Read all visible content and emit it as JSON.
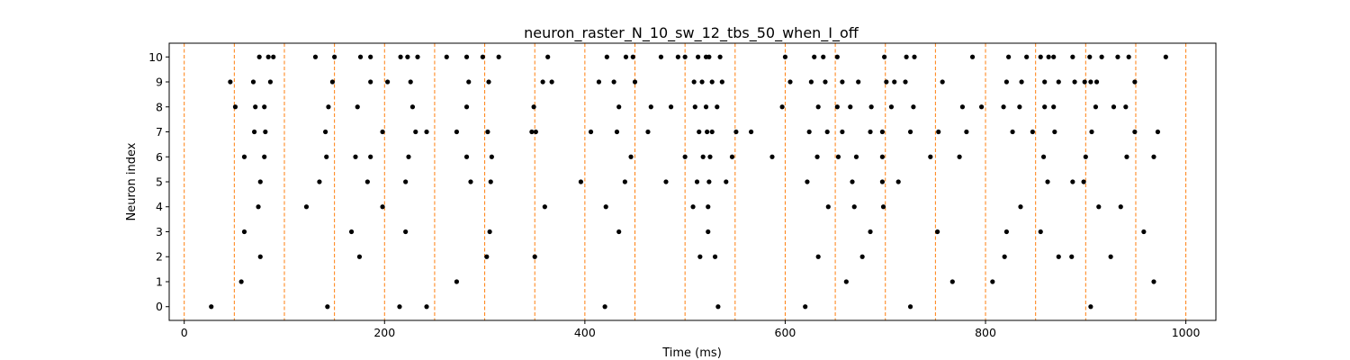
{
  "chart_data": {
    "type": "scatter",
    "title": "neuron_raster_N_10_sw_12_tbs_50_when_I_off",
    "xlabel": "Time (ms)",
    "ylabel": "Neuron index",
    "xlim": [
      -15,
      1030
    ],
    "ylim": [
      -0.55,
      10.55
    ],
    "x_ticks": [
      0,
      200,
      400,
      600,
      800,
      1000
    ],
    "y_ticks": [
      0,
      1,
      2,
      3,
      4,
      5,
      6,
      7,
      8,
      9,
      10
    ],
    "x_tick_labels": [
      "0",
      "200",
      "400",
      "600",
      "800",
      "1000"
    ],
    "y_tick_labels": [
      "0",
      "1",
      "2",
      "3",
      "4",
      "5",
      "6",
      "7",
      "8",
      "9",
      "10"
    ],
    "grid": false,
    "legend": "none",
    "marker_color": "#000000",
    "vline_color": "#ff7f0e",
    "vlines": [
      0,
      50,
      100,
      150,
      200,
      250,
      300,
      350,
      400,
      450,
      500,
      550,
      600,
      650,
      700,
      750,
      800,
      850,
      900,
      950,
      1000
    ],
    "series": [
      {
        "values": [
          {
            "x": 27,
            "y": 0
          },
          {
            "x": 143,
            "y": 0
          },
          {
            "x": 215,
            "y": 0
          },
          {
            "x": 242,
            "y": 0
          },
          {
            "x": 420,
            "y": 0
          },
          {
            "x": 533,
            "y": 0
          },
          {
            "x": 620,
            "y": 0
          },
          {
            "x": 725,
            "y": 0
          },
          {
            "x": 905,
            "y": 0
          },
          {
            "x": 57,
            "y": 1
          },
          {
            "x": 272,
            "y": 1
          },
          {
            "x": 661,
            "y": 1
          },
          {
            "x": 767,
            "y": 1
          },
          {
            "x": 807,
            "y": 1
          },
          {
            "x": 968,
            "y": 1
          },
          {
            "x": 76,
            "y": 2
          },
          {
            "x": 175,
            "y": 2
          },
          {
            "x": 302,
            "y": 2
          },
          {
            "x": 350,
            "y": 2
          },
          {
            "x": 515,
            "y": 2
          },
          {
            "x": 530,
            "y": 2
          },
          {
            "x": 633,
            "y": 2
          },
          {
            "x": 677,
            "y": 2
          },
          {
            "x": 819,
            "y": 2
          },
          {
            "x": 873,
            "y": 2
          },
          {
            "x": 886,
            "y": 2
          },
          {
            "x": 925,
            "y": 2
          },
          {
            "x": 60,
            "y": 3
          },
          {
            "x": 167,
            "y": 3
          },
          {
            "x": 221,
            "y": 3
          },
          {
            "x": 305,
            "y": 3
          },
          {
            "x": 434,
            "y": 3
          },
          {
            "x": 523,
            "y": 3
          },
          {
            "x": 685,
            "y": 3
          },
          {
            "x": 752,
            "y": 3
          },
          {
            "x": 821,
            "y": 3
          },
          {
            "x": 855,
            "y": 3
          },
          {
            "x": 958,
            "y": 3
          },
          {
            "x": 74,
            "y": 4
          },
          {
            "x": 122,
            "y": 4
          },
          {
            "x": 198,
            "y": 4
          },
          {
            "x": 360,
            "y": 4
          },
          {
            "x": 421,
            "y": 4
          },
          {
            "x": 508,
            "y": 4
          },
          {
            "x": 523,
            "y": 4
          },
          {
            "x": 643,
            "y": 4
          },
          {
            "x": 669,
            "y": 4
          },
          {
            "x": 698,
            "y": 4
          },
          {
            "x": 835,
            "y": 4
          },
          {
            "x": 913,
            "y": 4
          },
          {
            "x": 935,
            "y": 4
          },
          {
            "x": 76,
            "y": 5
          },
          {
            "x": 135,
            "y": 5
          },
          {
            "x": 183,
            "y": 5
          },
          {
            "x": 221,
            "y": 5
          },
          {
            "x": 286,
            "y": 5
          },
          {
            "x": 306,
            "y": 5
          },
          {
            "x": 396,
            "y": 5
          },
          {
            "x": 440,
            "y": 5
          },
          {
            "x": 481,
            "y": 5
          },
          {
            "x": 512,
            "y": 5
          },
          {
            "x": 524,
            "y": 5
          },
          {
            "x": 541,
            "y": 5
          },
          {
            "x": 622,
            "y": 5
          },
          {
            "x": 667,
            "y": 5
          },
          {
            "x": 697,
            "y": 5
          },
          {
            "x": 713,
            "y": 5
          },
          {
            "x": 862,
            "y": 5
          },
          {
            "x": 887,
            "y": 5
          },
          {
            "x": 898,
            "y": 5
          },
          {
            "x": 60,
            "y": 6
          },
          {
            "x": 80,
            "y": 6
          },
          {
            "x": 142,
            "y": 6
          },
          {
            "x": 171,
            "y": 6
          },
          {
            "x": 186,
            "y": 6
          },
          {
            "x": 224,
            "y": 6
          },
          {
            "x": 282,
            "y": 6
          },
          {
            "x": 307,
            "y": 6
          },
          {
            "x": 446,
            "y": 6
          },
          {
            "x": 500,
            "y": 6
          },
          {
            "x": 518,
            "y": 6
          },
          {
            "x": 525,
            "y": 6
          },
          {
            "x": 547,
            "y": 6
          },
          {
            "x": 587,
            "y": 6
          },
          {
            "x": 632,
            "y": 6
          },
          {
            "x": 653,
            "y": 6
          },
          {
            "x": 671,
            "y": 6
          },
          {
            "x": 697,
            "y": 6
          },
          {
            "x": 745,
            "y": 6
          },
          {
            "x": 774,
            "y": 6
          },
          {
            "x": 858,
            "y": 6
          },
          {
            "x": 900,
            "y": 6
          },
          {
            "x": 941,
            "y": 6
          },
          {
            "x": 968,
            "y": 6
          },
          {
            "x": 70,
            "y": 7
          },
          {
            "x": 81,
            "y": 7
          },
          {
            "x": 141,
            "y": 7
          },
          {
            "x": 198,
            "y": 7
          },
          {
            "x": 231,
            "y": 7
          },
          {
            "x": 242,
            "y": 7
          },
          {
            "x": 272,
            "y": 7
          },
          {
            "x": 303,
            "y": 7
          },
          {
            "x": 347,
            "y": 7
          },
          {
            "x": 351,
            "y": 7
          },
          {
            "x": 406,
            "y": 7
          },
          {
            "x": 432,
            "y": 7
          },
          {
            "x": 463,
            "y": 7
          },
          {
            "x": 514,
            "y": 7
          },
          {
            "x": 522,
            "y": 7
          },
          {
            "x": 527,
            "y": 7
          },
          {
            "x": 551,
            "y": 7
          },
          {
            "x": 566,
            "y": 7
          },
          {
            "x": 624,
            "y": 7
          },
          {
            "x": 642,
            "y": 7
          },
          {
            "x": 657,
            "y": 7
          },
          {
            "x": 685,
            "y": 7
          },
          {
            "x": 697,
            "y": 7
          },
          {
            "x": 725,
            "y": 7
          },
          {
            "x": 753,
            "y": 7
          },
          {
            "x": 781,
            "y": 7
          },
          {
            "x": 827,
            "y": 7
          },
          {
            "x": 847,
            "y": 7
          },
          {
            "x": 869,
            "y": 7
          },
          {
            "x": 906,
            "y": 7
          },
          {
            "x": 949,
            "y": 7
          },
          {
            "x": 972,
            "y": 7
          },
          {
            "x": 51,
            "y": 8
          },
          {
            "x": 71,
            "y": 8
          },
          {
            "x": 80,
            "y": 8
          },
          {
            "x": 144,
            "y": 8
          },
          {
            "x": 173,
            "y": 8
          },
          {
            "x": 228,
            "y": 8
          },
          {
            "x": 282,
            "y": 8
          },
          {
            "x": 349,
            "y": 8
          },
          {
            "x": 434,
            "y": 8
          },
          {
            "x": 466,
            "y": 8
          },
          {
            "x": 486,
            "y": 8
          },
          {
            "x": 510,
            "y": 8
          },
          {
            "x": 521,
            "y": 8
          },
          {
            "x": 532,
            "y": 8
          },
          {
            "x": 597,
            "y": 8
          },
          {
            "x": 633,
            "y": 8
          },
          {
            "x": 652,
            "y": 8
          },
          {
            "x": 665,
            "y": 8
          },
          {
            "x": 686,
            "y": 8
          },
          {
            "x": 706,
            "y": 8
          },
          {
            "x": 728,
            "y": 8
          },
          {
            "x": 777,
            "y": 8
          },
          {
            "x": 796,
            "y": 8
          },
          {
            "x": 818,
            "y": 8
          },
          {
            "x": 834,
            "y": 8
          },
          {
            "x": 859,
            "y": 8
          },
          {
            "x": 868,
            "y": 8
          },
          {
            "x": 910,
            "y": 8
          },
          {
            "x": 928,
            "y": 8
          },
          {
            "x": 940,
            "y": 8
          },
          {
            "x": 46,
            "y": 9
          },
          {
            "x": 69,
            "y": 9
          },
          {
            "x": 86,
            "y": 9
          },
          {
            "x": 148,
            "y": 9
          },
          {
            "x": 186,
            "y": 9
          },
          {
            "x": 203,
            "y": 9
          },
          {
            "x": 226,
            "y": 9
          },
          {
            "x": 284,
            "y": 9
          },
          {
            "x": 304,
            "y": 9
          },
          {
            "x": 358,
            "y": 9
          },
          {
            "x": 367,
            "y": 9
          },
          {
            "x": 414,
            "y": 9
          },
          {
            "x": 429,
            "y": 9
          },
          {
            "x": 450,
            "y": 9
          },
          {
            "x": 509,
            "y": 9
          },
          {
            "x": 517,
            "y": 9
          },
          {
            "x": 527,
            "y": 9
          },
          {
            "x": 537,
            "y": 9
          },
          {
            "x": 605,
            "y": 9
          },
          {
            "x": 626,
            "y": 9
          },
          {
            "x": 640,
            "y": 9
          },
          {
            "x": 657,
            "y": 9
          },
          {
            "x": 673,
            "y": 9
          },
          {
            "x": 701,
            "y": 9
          },
          {
            "x": 709,
            "y": 9
          },
          {
            "x": 720,
            "y": 9
          },
          {
            "x": 757,
            "y": 9
          },
          {
            "x": 821,
            "y": 9
          },
          {
            "x": 836,
            "y": 9
          },
          {
            "x": 859,
            "y": 9
          },
          {
            "x": 873,
            "y": 9
          },
          {
            "x": 889,
            "y": 9
          },
          {
            "x": 899,
            "y": 9
          },
          {
            "x": 905,
            "y": 9
          },
          {
            "x": 911,
            "y": 9
          },
          {
            "x": 949,
            "y": 9
          },
          {
            "x": 75,
            "y": 10
          },
          {
            "x": 84,
            "y": 10
          },
          {
            "x": 89,
            "y": 10
          },
          {
            "x": 131,
            "y": 10
          },
          {
            "x": 150,
            "y": 10
          },
          {
            "x": 176,
            "y": 10
          },
          {
            "x": 186,
            "y": 10
          },
          {
            "x": 216,
            "y": 10
          },
          {
            "x": 223,
            "y": 10
          },
          {
            "x": 233,
            "y": 10
          },
          {
            "x": 262,
            "y": 10
          },
          {
            "x": 282,
            "y": 10
          },
          {
            "x": 298,
            "y": 10
          },
          {
            "x": 314,
            "y": 10
          },
          {
            "x": 363,
            "y": 10
          },
          {
            "x": 422,
            "y": 10
          },
          {
            "x": 441,
            "y": 10
          },
          {
            "x": 448,
            "y": 10
          },
          {
            "x": 476,
            "y": 10
          },
          {
            "x": 493,
            "y": 10
          },
          {
            "x": 500,
            "y": 10
          },
          {
            "x": 513,
            "y": 10
          },
          {
            "x": 521,
            "y": 10
          },
          {
            "x": 524,
            "y": 10
          },
          {
            "x": 535,
            "y": 10
          },
          {
            "x": 600,
            "y": 10
          },
          {
            "x": 629,
            "y": 10
          },
          {
            "x": 638,
            "y": 10
          },
          {
            "x": 652,
            "y": 10
          },
          {
            "x": 699,
            "y": 10
          },
          {
            "x": 721,
            "y": 10
          },
          {
            "x": 729,
            "y": 10
          },
          {
            "x": 787,
            "y": 10
          },
          {
            "x": 823,
            "y": 10
          },
          {
            "x": 841,
            "y": 10
          },
          {
            "x": 855,
            "y": 10
          },
          {
            "x": 863,
            "y": 10
          },
          {
            "x": 868,
            "y": 10
          },
          {
            "x": 887,
            "y": 10
          },
          {
            "x": 904,
            "y": 10
          },
          {
            "x": 916,
            "y": 10
          },
          {
            "x": 932,
            "y": 10
          },
          {
            "x": 943,
            "y": 10
          },
          {
            "x": 980,
            "y": 10
          }
        ]
      }
    ]
  }
}
